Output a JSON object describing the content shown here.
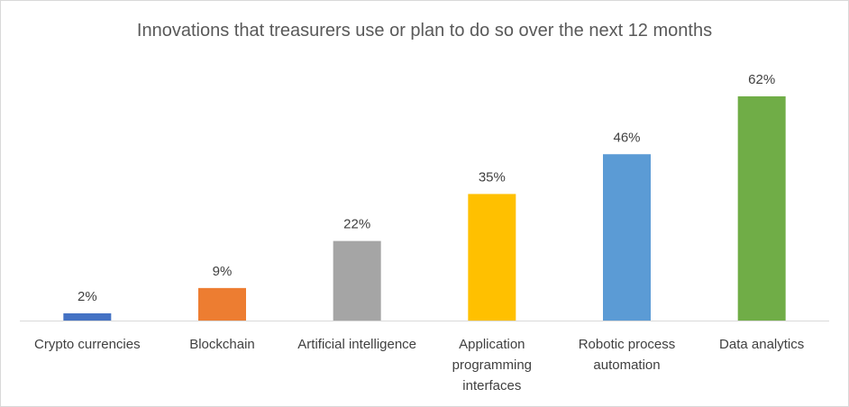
{
  "chart_data": {
    "type": "bar",
    "title": "Innovations that treasurers use or plan to do so over the next 12 months",
    "categories": [
      "Crypto currencies",
      "Blockchain",
      "Artificial intelligence",
      "Application programming interfaces",
      "Robotic process automation",
      "Data analytics"
    ],
    "values": [
      2,
      9,
      22,
      35,
      46,
      62
    ],
    "value_labels": [
      "2%",
      "9%",
      "22%",
      "35%",
      "46%",
      "62%"
    ],
    "colors": [
      "#4472c4",
      "#ed7d31",
      "#a5a5a5",
      "#ffc000",
      "#5b9bd5",
      "#70ad47"
    ]
  }
}
